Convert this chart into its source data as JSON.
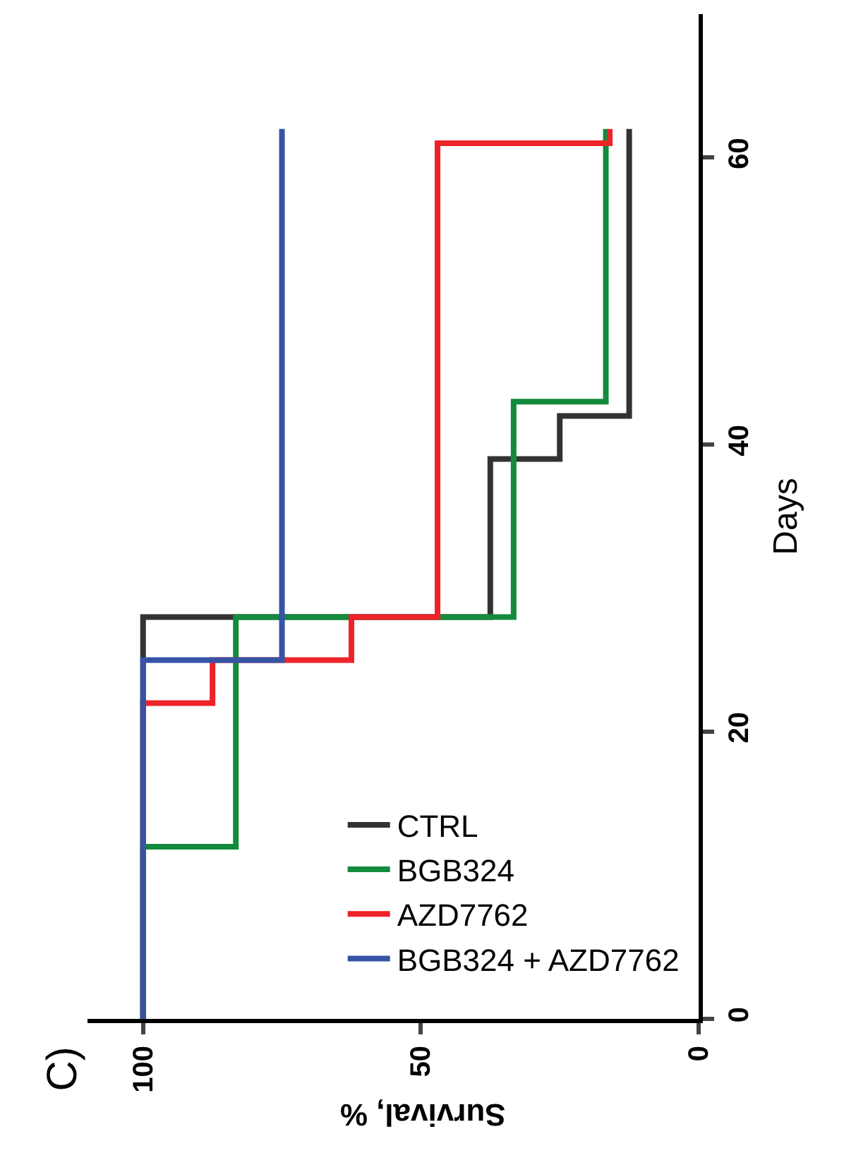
{
  "chart_data": {
    "type": "step",
    "xlabel": "Survival, %",
    "ylabel": "Days",
    "annotations": [
      "C)"
    ],
    "xlim": [
      110,
      0
    ],
    "xticks": [
      100,
      50,
      0
    ],
    "ylim": [
      0,
      70
    ],
    "yticks": [
      0,
      20,
      40,
      60
    ],
    "legend": "bottom right",
    "series": [
      {
        "name": "CTRL",
        "color": "#333333",
        "x": [
          100,
          37.5,
          25,
          12.5,
          12.5
        ],
        "values": [
          0,
          28,
          39,
          42,
          62
        ]
      },
      {
        "name": "BGB324",
        "color": "#138a3c",
        "x": [
          100,
          83.3,
          33.3,
          16.7,
          16.7
        ],
        "values": [
          0,
          12,
          28,
          43,
          62
        ]
      },
      {
        "name": "AZD7762",
        "color": "#ee2229",
        "x": [
          100,
          87.5,
          62.5,
          47,
          16,
          16
        ],
        "values": [
          0,
          22,
          25,
          28,
          61,
          62
        ]
      },
      {
        "name": "BGB324 + AZD7762",
        "color": "#3653a5",
        "x": [
          100,
          75,
          75
        ],
        "values": [
          0,
          25,
          62
        ]
      }
    ]
  }
}
